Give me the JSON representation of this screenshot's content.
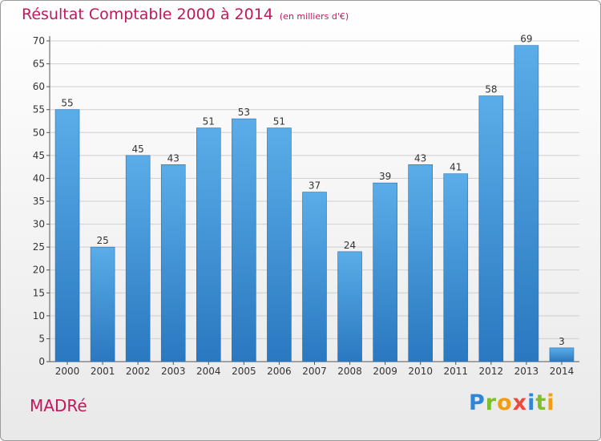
{
  "chart_data": {
    "type": "bar",
    "title": "Résultat Comptable 2000 à 2014",
    "subtitle": "(en milliers d'€)",
    "categories": [
      "2000",
      "2001",
      "2002",
      "2003",
      "2004",
      "2005",
      "2006",
      "2007",
      "2008",
      "2009",
      "2010",
      "2011",
      "2012",
      "2013",
      "2014"
    ],
    "values": [
      55,
      25,
      45,
      43,
      51,
      53,
      51,
      37,
      24,
      39,
      43,
      41,
      58,
      69,
      3
    ],
    "ylim": [
      0,
      70
    ],
    "yticks": [
      0,
      5,
      10,
      15,
      20,
      25,
      30,
      35,
      40,
      45,
      50,
      55,
      60,
      65,
      70
    ],
    "grid": true,
    "bar_color": "#3d8fd6"
  },
  "footer": {
    "town": "MADRé",
    "logo_letters": [
      "P",
      "r",
      "o",
      "x",
      "i",
      "t",
      "i"
    ],
    "logo_colors": [
      "#2e86d6",
      "#7cbf2a",
      "#f39c12",
      "#e74c3c",
      "#2e86d6",
      "#7cbf2a",
      "#f39c12"
    ]
  }
}
